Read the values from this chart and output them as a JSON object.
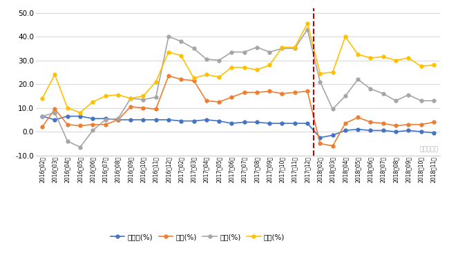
{
  "title": "",
  "xlabel": "",
  "ylabel": "",
  "ylim": [
    -10.0,
    52.0
  ],
  "yticks": [
    -10.0,
    0.0,
    10.0,
    20.0,
    30.0,
    40.0,
    50.0
  ],
  "ytick_labels": [
    "-10.0",
    "0.0",
    "10.0",
    "20.0",
    "30.0",
    "40.0",
    "50.0"
  ],
  "labels": [
    "2016年02月",
    "2016年03月",
    "2016年04月",
    "2016年05月",
    "2016年06月",
    "2016年07月",
    "2016年08月",
    "2016年09月",
    "2016年10月",
    "2016年11月",
    "2016年12月",
    "2017年02月",
    "2017年03月",
    "2017年04月",
    "2017年05月",
    "2017年06月",
    "2017年07月",
    "2017年08月",
    "2017年09月",
    "2017年10月",
    "2017年11月",
    "2017年12月",
    "2018年02月",
    "2018年03月",
    "2018年04月",
    "2018年05月",
    "2018年06月",
    "2018年07月",
    "2018年08月",
    "2018年09月",
    "2018年10月",
    "2018年11月"
  ],
  "washer": [
    6.5,
    5.0,
    6.5,
    6.5,
    5.5,
    5.5,
    5.0,
    5.0,
    5.0,
    5.0,
    5.0,
    4.5,
    4.5,
    5.0,
    4.5,
    3.5,
    4.0,
    4.0,
    3.5,
    3.5,
    3.5,
    3.5,
    -2.5,
    -1.5,
    0.5,
    1.0,
    0.5,
    0.5,
    0.0,
    0.5,
    0.0,
    -0.5
  ],
  "fridge": [
    2.0,
    9.5,
    3.0,
    2.5,
    3.0,
    3.0,
    5.0,
    10.5,
    10.0,
    9.5,
    23.5,
    22.0,
    21.5,
    13.0,
    12.5,
    14.5,
    16.5,
    16.5,
    17.0,
    16.0,
    16.5,
    17.0,
    -5.0,
    -6.0,
    3.5,
    6.0,
    4.0,
    3.5,
    2.5,
    3.0,
    3.0,
    4.0
  ],
  "ac": [
    6.5,
    8.0,
    -4.0,
    -6.5,
    0.5,
    5.0,
    5.5,
    14.0,
    13.5,
    14.5,
    40.0,
    38.0,
    35.0,
    30.5,
    30.0,
    33.5,
    33.5,
    35.5,
    33.5,
    35.0,
    35.0,
    43.0,
    21.0,
    9.5,
    15.0,
    22.0,
    18.0,
    16.0,
    13.0,
    15.5,
    13.0,
    13.0
  ],
  "tv": [
    14.0,
    24.0,
    10.0,
    8.0,
    12.5,
    15.0,
    15.5,
    14.0,
    15.0,
    21.0,
    33.5,
    32.0,
    22.5,
    24.0,
    23.0,
    27.0,
    27.0,
    26.0,
    28.0,
    35.5,
    35.5,
    45.5,
    24.5,
    25.0,
    40.0,
    32.5,
    31.0,
    31.5,
    30.0,
    31.0,
    27.5,
    28.0
  ],
  "washer_color": "#4472C4",
  "fridge_color": "#ED7D31",
  "ac_color": "#A5A5A5",
  "tv_color": "#FFC000",
  "vline_x": 22,
  "vline_color": "#C00000",
  "bg_color": "#FFFFFF",
  "grid_color": "#D9D9D9",
  "legend_labels": [
    "洗衣机(%)",
    "冰筱(%)",
    "空调(%)",
    "彩电(%)"
  ],
  "watermark": "力顺不锈鉢"
}
